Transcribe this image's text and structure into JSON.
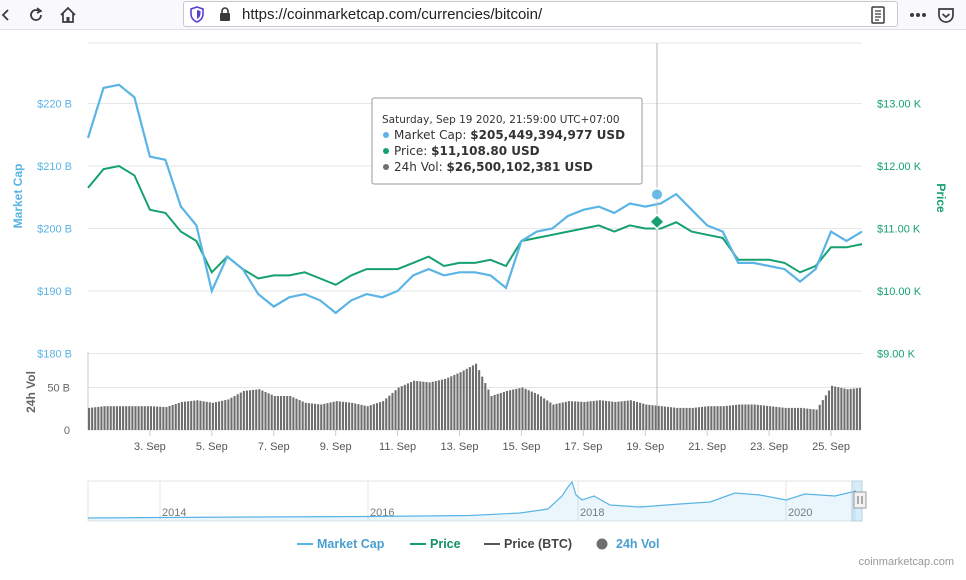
{
  "browser": {
    "url": "https://coinmarketcap.com/currencies/bitcoin/",
    "icons": [
      "back-icon",
      "reload-icon",
      "home-icon",
      "tracking-shield-icon",
      "lock-icon",
      "reader-view-icon",
      "overflow-menu-icon",
      "pocket-icon"
    ]
  },
  "colors": {
    "market_cap": "#5ab4e5",
    "price": "#16a070",
    "price_btc": "#555555",
    "volume": "#6e6e6e",
    "grid": "#e6e6e6"
  },
  "axes": {
    "left_title": "Market Cap",
    "right_title": "Price",
    "volume_title": "24h Vol",
    "left_ticks": [
      "$180 B",
      "$190 B",
      "$200 B",
      "$210 B",
      "$220 B"
    ],
    "right_ticks": [
      "$9.00 K",
      "$10.00 K",
      "$11.00 K",
      "$12.00 K",
      "$13.00 K"
    ],
    "volume_ticks": [
      "0",
      "50 B"
    ],
    "x_ticks": [
      "3. Sep",
      "5. Sep",
      "7. Sep",
      "9. Sep",
      "11. Sep",
      "13. Sep",
      "15. Sep",
      "17. Sep",
      "19. Sep",
      "21. Sep",
      "23. Sep",
      "25. Sep"
    ],
    "navigator_years": [
      "2014",
      "2016",
      "2018",
      "2020"
    ]
  },
  "tooltip": {
    "date": "Saturday, Sep 19 2020, 21:59:00 UTC+07:00",
    "rows": [
      {
        "label": "Market Cap: ",
        "value": "$205,449,394,977 USD"
      },
      {
        "label": "Price: ",
        "value": "$11,108.80 USD"
      },
      {
        "label": "24h Vol: ",
        "value": "$26,500,102,381 USD"
      }
    ]
  },
  "legend": [
    "Market Cap",
    "Price",
    "Price (BTC)",
    "24h Vol"
  ],
  "credit": "coinmarketcap.com",
  "chart_data": {
    "type": "line",
    "x_range": [
      "2020-09-01",
      "2020-09-26"
    ],
    "ylim_left": [
      180,
      225
    ],
    "ylim_right": [
      9000,
      13000
    ],
    "ylabel_left": "Market Cap",
    "ylabel_right": "Price",
    "legend_position": "bottom",
    "series": [
      {
        "name": "Market Cap",
        "unit": "B USD",
        "x": [
          "2020-09-01",
          "2020-09-01T12:00",
          "2020-09-02",
          "2020-09-02T12:00",
          "2020-09-03",
          "2020-09-03T12:00",
          "2020-09-04",
          "2020-09-04T12:00",
          "2020-09-05",
          "2020-09-05T12:00",
          "2020-09-06",
          "2020-09-06T12:00",
          "2020-09-07",
          "2020-09-07T12:00",
          "2020-09-08",
          "2020-09-08T12:00",
          "2020-09-09",
          "2020-09-09T12:00",
          "2020-09-10",
          "2020-09-10T12:00",
          "2020-09-11",
          "2020-09-11T12:00",
          "2020-09-12",
          "2020-09-12T12:00",
          "2020-09-13",
          "2020-09-13T12:00",
          "2020-09-14",
          "2020-09-14T12:00",
          "2020-09-15",
          "2020-09-15T12:00",
          "2020-09-16",
          "2020-09-16T12:00",
          "2020-09-17",
          "2020-09-17T12:00",
          "2020-09-18",
          "2020-09-18T12:00",
          "2020-09-19",
          "2020-09-19T12:00",
          "2020-09-20",
          "2020-09-20T12:00",
          "2020-09-21",
          "2020-09-21T12:00",
          "2020-09-22",
          "2020-09-22T12:00",
          "2020-09-23",
          "2020-09-23T12:00",
          "2020-09-24",
          "2020-09-24T12:00",
          "2020-09-25",
          "2020-09-25T12:00",
          "2020-09-26"
        ],
        "values": [
          214.5,
          222.5,
          223,
          221,
          211.5,
          211,
          203.5,
          200.5,
          190,
          195.5,
          193.5,
          189.5,
          187.5,
          189,
          189.5,
          188.5,
          186.5,
          188.5,
          189.5,
          189,
          190,
          192.5,
          193.5,
          192.5,
          193,
          193,
          192.5,
          190.5,
          198,
          199.5,
          200,
          202,
          203,
          203.5,
          202.5,
          204,
          203.5,
          204,
          205.5,
          203,
          200.5,
          199.5,
          194.5,
          194.5,
          194,
          193.5,
          191.5,
          193.5,
          199.5,
          198,
          199.5
        ]
      },
      {
        "name": "Price",
        "unit": "USD",
        "x": [
          "2020-09-01",
          "2020-09-01T12:00",
          "2020-09-02",
          "2020-09-02T12:00",
          "2020-09-03",
          "2020-09-03T12:00",
          "2020-09-04",
          "2020-09-04T12:00",
          "2020-09-05",
          "2020-09-05T12:00",
          "2020-09-06",
          "2020-09-06T12:00",
          "2020-09-07",
          "2020-09-07T12:00",
          "2020-09-08",
          "2020-09-08T12:00",
          "2020-09-09",
          "2020-09-09T12:00",
          "2020-09-10",
          "2020-09-10T12:00",
          "2020-09-11",
          "2020-09-11T12:00",
          "2020-09-12",
          "2020-09-12T12:00",
          "2020-09-13",
          "2020-09-13T12:00",
          "2020-09-14",
          "2020-09-14T12:00",
          "2020-09-15",
          "2020-09-15T12:00",
          "2020-09-16",
          "2020-09-16T12:00",
          "2020-09-17",
          "2020-09-17T12:00",
          "2020-09-18",
          "2020-09-18T12:00",
          "2020-09-19",
          "2020-09-19T12:00",
          "2020-09-20",
          "2020-09-20T12:00",
          "2020-09-21",
          "2020-09-21T12:00",
          "2020-09-22",
          "2020-09-22T12:00",
          "2020-09-23",
          "2020-09-23T12:00",
          "2020-09-24",
          "2020-09-24T12:00",
          "2020-09-25",
          "2020-09-25T12:00",
          "2020-09-26"
        ],
        "values": [
          11650,
          11950,
          12000,
          11850,
          11300,
          11250,
          10950,
          10800,
          10300,
          10550,
          10350,
          10200,
          10250,
          10250,
          10300,
          10200,
          10100,
          10250,
          10350,
          10350,
          10350,
          10450,
          10550,
          10400,
          10450,
          10450,
          10500,
          10400,
          10800,
          10850,
          10900,
          10950,
          11000,
          11050,
          10950,
          11050,
          11000,
          11000,
          11100,
          10950,
          10900,
          10850,
          10500,
          10500,
          10500,
          10450,
          10300,
          10400,
          10700,
          10700,
          10750
        ]
      },
      {
        "name": "24h Vol",
        "unit": "B USD",
        "x": [
          "2020-09-01",
          "2020-09-01T12:00",
          "2020-09-02",
          "2020-09-02T12:00",
          "2020-09-03",
          "2020-09-03T12:00",
          "2020-09-04",
          "2020-09-04T12:00",
          "2020-09-05",
          "2020-09-05T12:00",
          "2020-09-06",
          "2020-09-06T12:00",
          "2020-09-07",
          "2020-09-07T12:00",
          "2020-09-08",
          "2020-09-08T12:00",
          "2020-09-09",
          "2020-09-09T12:00",
          "2020-09-10",
          "2020-09-10T12:00",
          "2020-09-11",
          "2020-09-11T12:00",
          "2020-09-12",
          "2020-09-12T12:00",
          "2020-09-13",
          "2020-09-13T12:00",
          "2020-09-14",
          "2020-09-14T12:00",
          "2020-09-15",
          "2020-09-15T12:00",
          "2020-09-16",
          "2020-09-16T12:00",
          "2020-09-17",
          "2020-09-17T12:00",
          "2020-09-18",
          "2020-09-18T12:00",
          "2020-09-19",
          "2020-09-19T12:00",
          "2020-09-20",
          "2020-09-20T12:00",
          "2020-09-21",
          "2020-09-21T12:00",
          "2020-09-22",
          "2020-09-22T12:00",
          "2020-09-23",
          "2020-09-23T12:00",
          "2020-09-24",
          "2020-09-24T12:00",
          "2020-09-25",
          "2020-09-25T12:00",
          "2020-09-26"
        ],
        "values": [
          26,
          28,
          28,
          28,
          28,
          27,
          33,
          35,
          32,
          36,
          46,
          48,
          40,
          40,
          32,
          30,
          34,
          32,
          28,
          34,
          50,
          58,
          56,
          60,
          68,
          78,
          40,
          46,
          50,
          42,
          30,
          34,
          33,
          35,
          33,
          35,
          30,
          28,
          26,
          26,
          28,
          28,
          30,
          30,
          28,
          26,
          26,
          24,
          52,
          48,
          50
        ]
      }
    ]
  }
}
